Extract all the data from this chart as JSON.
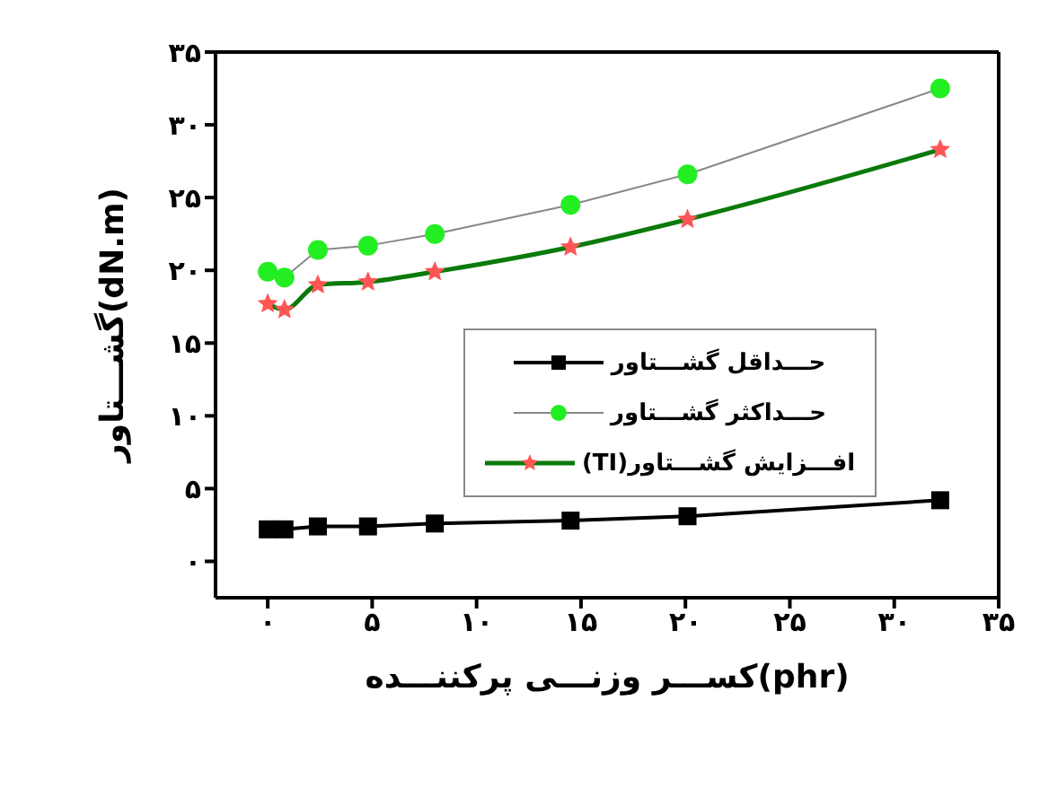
{
  "chart_data": {
    "type": "line",
    "xlabel": "کســـر وزنـــی پرکننـــده(phr)",
    "ylabel": "گشـــتاور(dN.m)",
    "x": [
      0,
      0.8,
      2.4,
      4.8,
      8,
      14.5,
      20.1,
      32.2
    ],
    "series": [
      {
        "name": "حـــداقل گشـــتاور",
        "color": "#000000",
        "marker": "square",
        "values": [
          2.2,
          2.2,
          2.4,
          2.4,
          2.6,
          2.8,
          3.1,
          4.2
        ]
      },
      {
        "name": "حـــداکثر گشـــتاور",
        "color": "#22ee22",
        "marker": "circle",
        "values": [
          19.9,
          19.5,
          21.4,
          21.7,
          22.5,
          24.5,
          26.6,
          32.5
        ]
      },
      {
        "name": "افـــزایش گشـــتاور(TI)",
        "color": "#0a7a0a",
        "marker": "star",
        "values": [
          17.7,
          17.3,
          19.0,
          19.2,
          19.9,
          21.6,
          23.5,
          28.3
        ]
      }
    ],
    "xlim": [
      -2.5,
      35
    ],
    "xticks": [
      {
        "value": 0,
        "label": "۰"
      },
      {
        "value": 5,
        "label": "۵"
      },
      {
        "value": 10,
        "label": "۱۰"
      },
      {
        "value": 15,
        "label": "۱۵"
      },
      {
        "value": 20,
        "label": "۲۰"
      },
      {
        "value": 25,
        "label": "۲۵"
      },
      {
        "value": 30,
        "label": "۳۰"
      },
      {
        "value": 35,
        "label": "۳۵"
      }
    ],
    "ylim": [
      -2.5,
      35
    ],
    "yticks": [
      {
        "value": 0,
        "label": "۰"
      },
      {
        "value": 5,
        "label": "۵"
      },
      {
        "value": 10,
        "label": "۱۰"
      },
      {
        "value": 15,
        "label": "۱۵"
      },
      {
        "value": 20,
        "label": "۲۰"
      },
      {
        "value": 25,
        "label": "۲۵"
      },
      {
        "value": 30,
        "label": "۳۰"
      },
      {
        "value": 35,
        "label": "۳۵"
      }
    ],
    "grid": false,
    "legend": "right"
  }
}
